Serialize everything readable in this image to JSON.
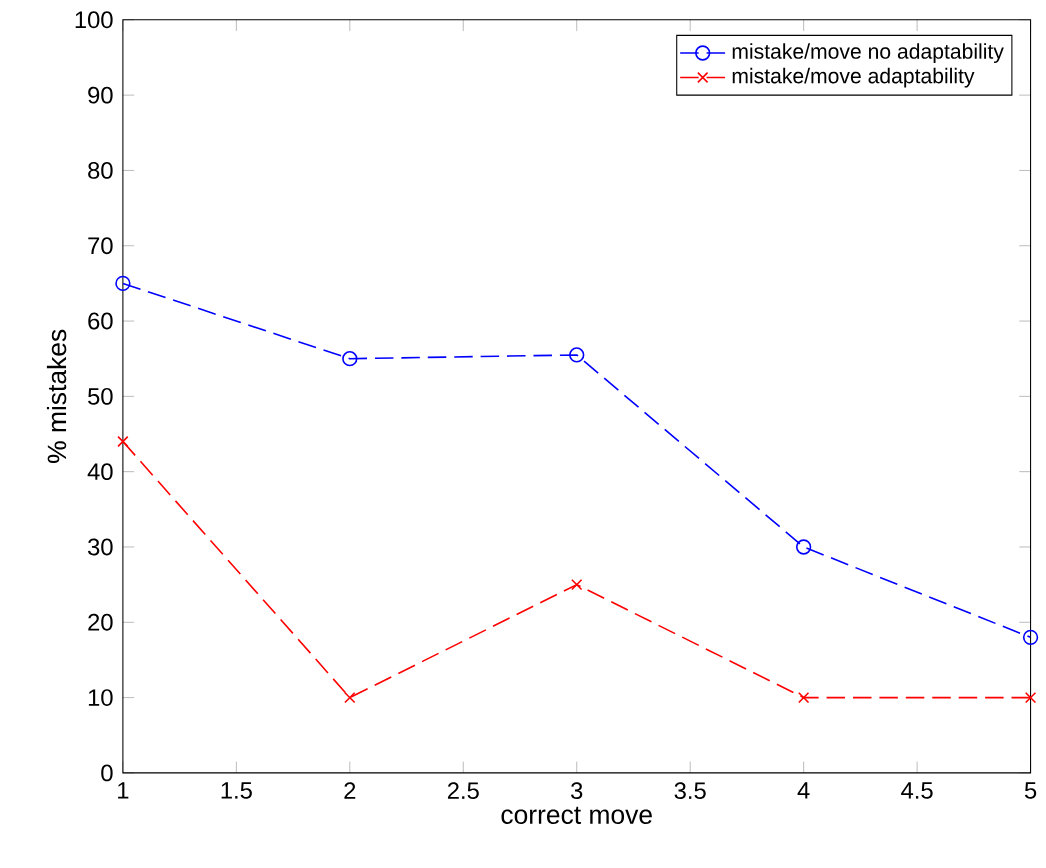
{
  "chart_data": {
    "type": "line",
    "xlabel": "correct move",
    "ylabel": "% mistakes",
    "x": [
      1,
      2,
      3,
      4,
      5
    ],
    "series": [
      {
        "name": "mistake/move no adaptability",
        "color": "#0000ff",
        "values": [
          65,
          55,
          55.5,
          30,
          18
        ],
        "marker": "circle",
        "line_style": "dashed"
      },
      {
        "name": "mistake/move adaptability",
        "color": "#ff0000",
        "values": [
          44,
          10,
          25,
          10,
          10
        ],
        "marker": "cross",
        "line_style": "dashed"
      }
    ],
    "xlim": [
      1,
      5
    ],
    "ylim": [
      0,
      100
    ],
    "xticks": [
      1,
      1.5,
      2,
      2.5,
      3,
      3.5,
      4,
      4.5,
      5
    ],
    "yticks": [
      0,
      10,
      20,
      30,
      40,
      50,
      60,
      70,
      80,
      90,
      100
    ],
    "grid": false,
    "legend": "top right"
  }
}
